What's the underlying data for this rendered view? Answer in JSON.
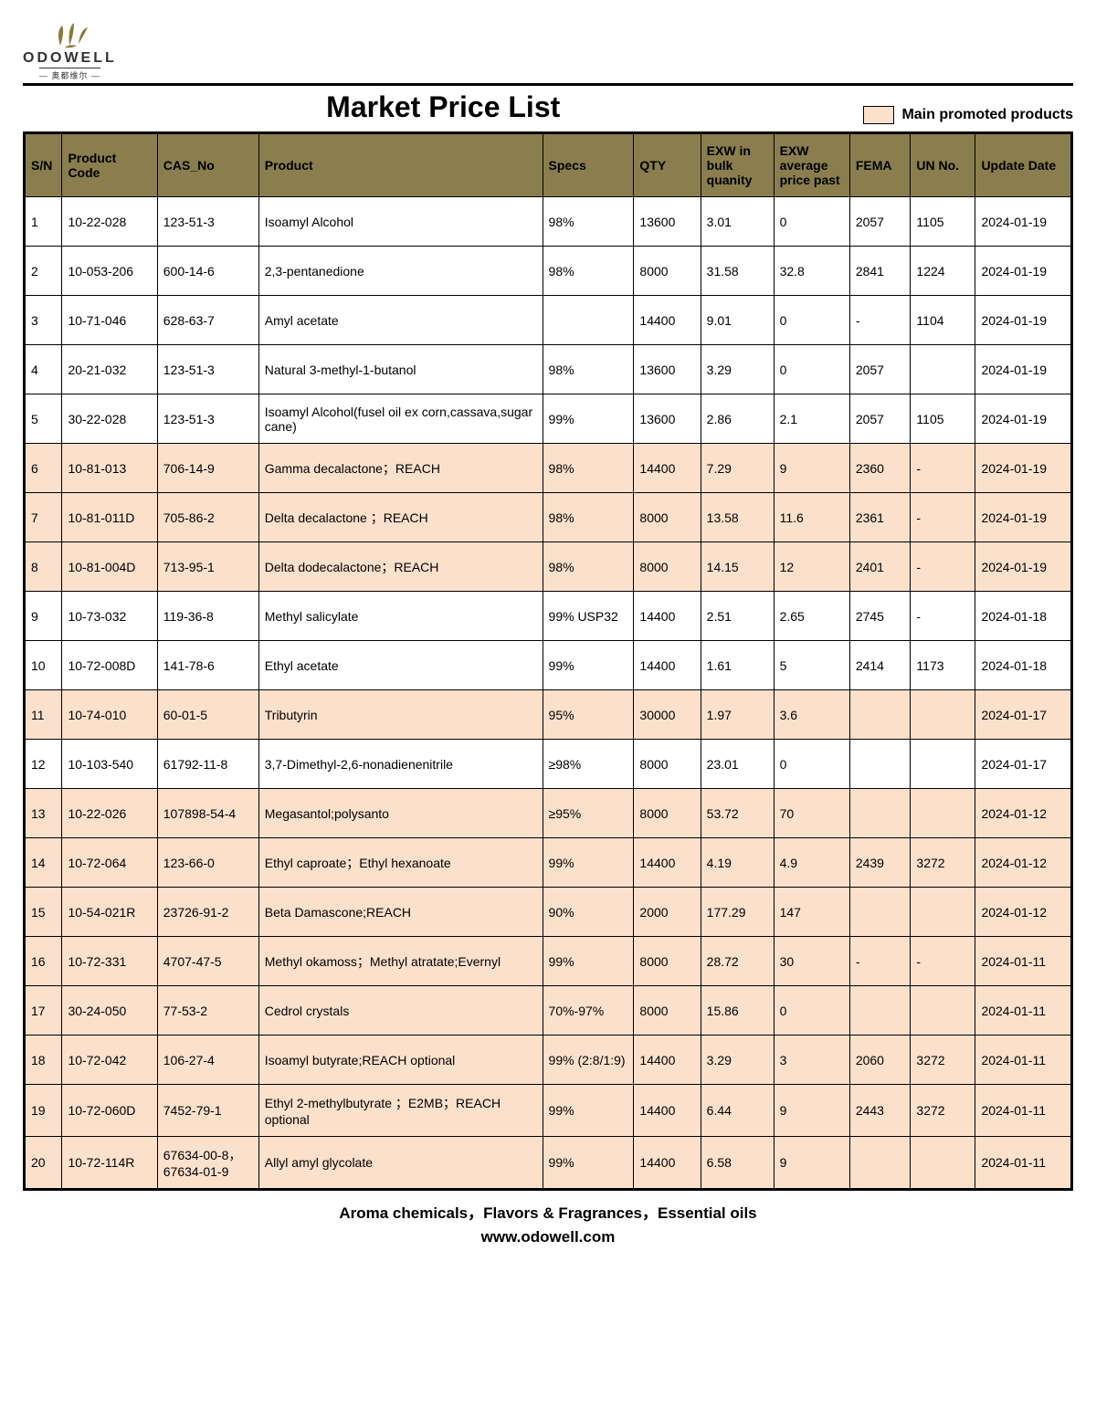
{
  "brand": {
    "name": "ODOWELL",
    "sub": "— 奥都维尔 —",
    "logo_color": "#8a7a3a"
  },
  "title": "Market Price List",
  "legend": {
    "swatch_color": "#fbe0cc",
    "label": "Main promoted products"
  },
  "table": {
    "header_bg": "#8a7e4e",
    "header_fg": "#000000",
    "promoted_bg": "#fbe0cc",
    "normal_bg": "#ffffff",
    "columns": [
      "S/N",
      "Product Code",
      "CAS_No",
      "Product",
      "Specs",
      "QTY",
      "EXW in bulk quanity",
      "EXW average price past",
      "FEMA",
      "UN No.",
      "Update Date"
    ],
    "rows": [
      {
        "sn": "1",
        "code": "10-22-028",
        "cas": "123-51-3",
        "product": "Isoamyl Alcohol",
        "specs": "98%",
        "qty": "13600",
        "exw_bulk": "3.01",
        "exw_avg": "0",
        "fema": "2057",
        "un": "1105",
        "date": "2024-01-19",
        "promoted": false
      },
      {
        "sn": "2",
        "code": "10-053-206",
        "cas": "600-14-6",
        "product": "2,3-pentanedione",
        "specs": "98%",
        "qty": "8000",
        "exw_bulk": "31.58",
        "exw_avg": "32.8",
        "fema": "2841",
        "un": "1224",
        "date": "2024-01-19",
        "promoted": false
      },
      {
        "sn": "3",
        "code": "10-71-046",
        "cas": "628-63-7",
        "product": "Amyl acetate",
        "specs": "",
        "qty": "14400",
        "exw_bulk": "9.01",
        "exw_avg": "0",
        "fema": "-",
        "un": "1104",
        "date": "2024-01-19",
        "promoted": false
      },
      {
        "sn": "4",
        "code": "20-21-032",
        "cas": "123-51-3",
        "product": "Natural 3-methyl-1-butanol",
        "specs": "98%",
        "qty": "13600",
        "exw_bulk": "3.29",
        "exw_avg": "0",
        "fema": "2057",
        "un": "",
        "date": "2024-01-19",
        "promoted": false
      },
      {
        "sn": "5",
        "code": "30-22-028",
        "cas": "123-51-3",
        "product": "Isoamyl Alcohol(fusel oil ex corn,cassava,sugar cane)",
        "specs": "99%",
        "qty": "13600",
        "exw_bulk": "2.86",
        "exw_avg": "2.1",
        "fema": "2057",
        "un": "1105",
        "date": "2024-01-19",
        "promoted": false
      },
      {
        "sn": "6",
        "code": "10-81-013",
        "cas": "706-14-9",
        "product": "Gamma decalactone；REACH",
        "specs": "98%",
        "qty": "14400",
        "exw_bulk": "7.29",
        "exw_avg": "9",
        "fema": "2360",
        "un": "-",
        "date": "2024-01-19",
        "promoted": true
      },
      {
        "sn": "7",
        "code": "10-81-011D",
        "cas": "705-86-2",
        "product": "Delta decalactone ；REACH",
        "specs": "98%",
        "qty": "8000",
        "exw_bulk": "13.58",
        "exw_avg": "11.6",
        "fema": "2361",
        "un": "-",
        "date": "2024-01-19",
        "promoted": true
      },
      {
        "sn": "8",
        "code": "10-81-004D",
        "cas": "713-95-1",
        "product": "Delta dodecalactone；REACH",
        "specs": "98%",
        "qty": "8000",
        "exw_bulk": "14.15",
        "exw_avg": "12",
        "fema": "2401",
        "un": "-",
        "date": "2024-01-19",
        "promoted": true
      },
      {
        "sn": "9",
        "code": "10-73-032",
        "cas": "119-36-8",
        "product": "Methyl salicylate",
        "specs": "99% USP32",
        "qty": "14400",
        "exw_bulk": "2.51",
        "exw_avg": "2.65",
        "fema": "2745",
        "un": "-",
        "date": "2024-01-18",
        "promoted": false
      },
      {
        "sn": "10",
        "code": "10-72-008D",
        "cas": "141-78-6",
        "product": "Ethyl acetate",
        "specs": "99%",
        "qty": "14400",
        "exw_bulk": "1.61",
        "exw_avg": "5",
        "fema": "2414",
        "un": "1173",
        "date": "2024-01-18",
        "promoted": false
      },
      {
        "sn": "11",
        "code": "10-74-010",
        "cas": "60-01-5",
        "product": "Tributyrin",
        "specs": "95%",
        "qty": "30000",
        "exw_bulk": "1.97",
        "exw_avg": "3.6",
        "fema": "",
        "un": "",
        "date": "2024-01-17",
        "promoted": true
      },
      {
        "sn": "12",
        "code": "10-103-540",
        "cas": "61792-11-8",
        "product": "3,7-Dimethyl-2,6-nonadienenitrile",
        "specs": " ≥98%",
        "qty": "8000",
        "exw_bulk": "23.01",
        "exw_avg": "0",
        "fema": "",
        "un": "",
        "date": "2024-01-17",
        "promoted": false
      },
      {
        "sn": "13",
        "code": "10-22-026",
        "cas": "107898-54-4",
        "product": "Megasantol;polysanto",
        "specs": "≥95%",
        "qty": "8000",
        "exw_bulk": "53.72",
        "exw_avg": "70",
        "fema": "",
        "un": "",
        "date": "2024-01-12",
        "promoted": true
      },
      {
        "sn": "14",
        "code": "10-72-064",
        "cas": "123-66-0",
        "product": "Ethyl caproate；Ethyl hexanoate",
        "specs": "99%",
        "qty": "14400",
        "exw_bulk": "4.19",
        "exw_avg": "4.9",
        "fema": "2439",
        "un": "3272",
        "date": "2024-01-12",
        "promoted": true
      },
      {
        "sn": "15",
        "code": "10-54-021R",
        "cas": "23726-91-2",
        "product": "Beta Damascone;REACH",
        "specs": "90%",
        "qty": "2000",
        "exw_bulk": "177.29",
        "exw_avg": "147",
        "fema": "",
        "un": "",
        "date": "2024-01-12",
        "promoted": true
      },
      {
        "sn": "16",
        "code": "10-72-331",
        "cas": "4707-47-5",
        "product": "Methyl okamoss；Methyl atratate;Evernyl",
        "specs": "99%",
        "qty": "8000",
        "exw_bulk": "28.72",
        "exw_avg": "30",
        "fema": "-",
        "un": "-",
        "date": "2024-01-11",
        "promoted": true
      },
      {
        "sn": "17",
        "code": "30-24-050",
        "cas": "77-53-2",
        "product": "Cedrol crystals",
        "specs": "70%-97%",
        "qty": "8000",
        "exw_bulk": "15.86",
        "exw_avg": "0",
        "fema": "",
        "un": "",
        "date": "2024-01-11",
        "promoted": true
      },
      {
        "sn": "18",
        "code": "10-72-042",
        "cas": "106-27-4",
        "product": "Isoamyl butyrate;REACH optional",
        "specs": "99% (2:8/1:9)",
        "qty": "14400",
        "exw_bulk": "3.29",
        "exw_avg": "3",
        "fema": "2060",
        "un": "3272",
        "date": "2024-01-11",
        "promoted": true
      },
      {
        "sn": "19",
        "code": "10-72-060D",
        "cas": "7452-79-1",
        "product": "Ethyl 2-methylbutyrate ；E2MB；REACH optional",
        "specs": "99%",
        "qty": "14400",
        "exw_bulk": "6.44",
        "exw_avg": "9",
        "fema": "2443",
        "un": "3272",
        "date": "2024-01-11",
        "promoted": true
      },
      {
        "sn": "20",
        "code": "10-72-114R",
        "cas": "67634-00-8，67634-01-9",
        "product": "Allyl amyl glycolate",
        "specs": "99%",
        "qty": "14400",
        "exw_bulk": "6.58",
        "exw_avg": "9",
        "fema": "",
        "un": "",
        "date": "2024-01-11",
        "promoted": true
      }
    ]
  },
  "footer": {
    "line1": "Aroma chemicals，Flavors & Fragrances，Essential oils",
    "line2": "www.odowell.com"
  }
}
